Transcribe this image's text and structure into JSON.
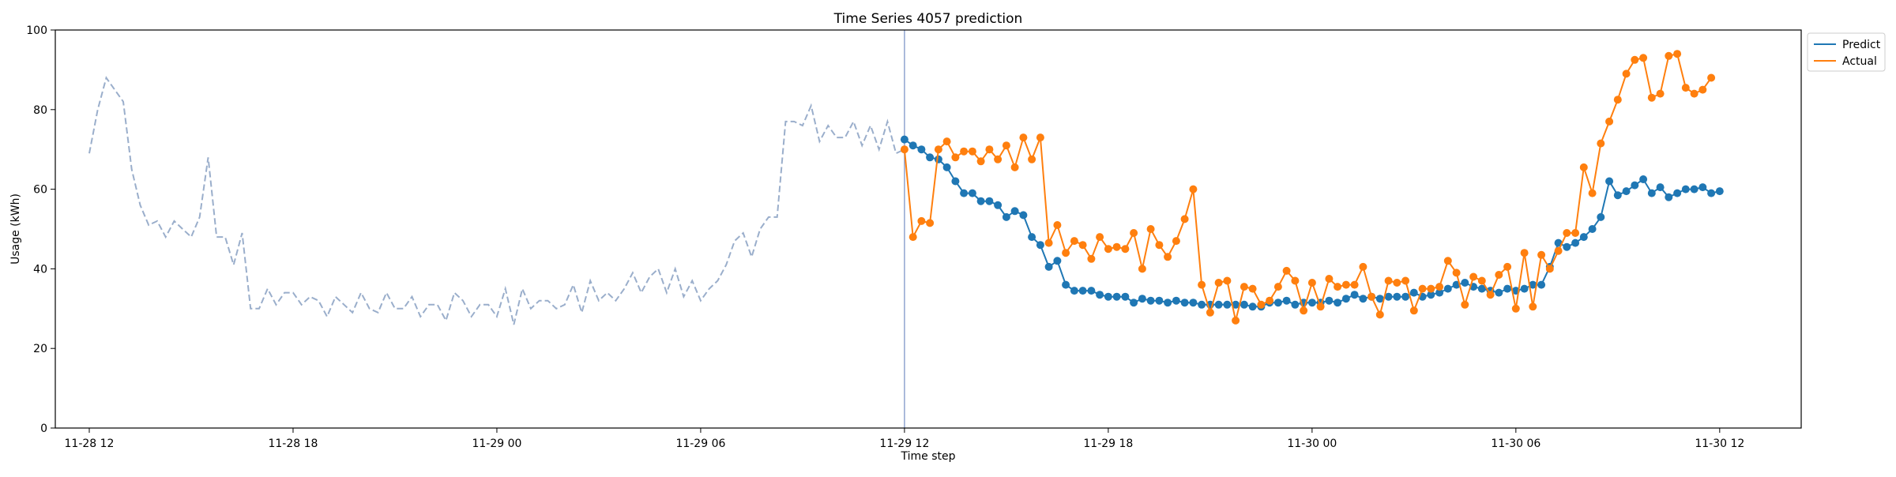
{
  "chart_data": {
    "type": "line",
    "title": "Time Series 4057 prediction",
    "xlabel": "Time step",
    "ylabel": "Usage (kWh)",
    "ylim": [
      0,
      100
    ],
    "y_ticks": [
      0,
      20,
      40,
      60,
      80,
      100
    ],
    "x_tick_labels": [
      "11-28 12",
      "11-28 18",
      "11-29 00",
      "11-29 06",
      "11-29 12",
      "11-29 18",
      "11-30 00",
      "11-30 06",
      "11-30 12"
    ],
    "x_start": "2023-11-28 11:00",
    "x_end": "2023-11-30 14:24",
    "x_tick_times": [
      "2023-11-28 12:00",
      "2023-11-28 18:00",
      "2023-11-29 00:00",
      "2023-11-29 06:00",
      "2023-11-29 12:00",
      "2023-11-29 18:00",
      "2023-11-30 00:00",
      "2023-11-30 06:00",
      "2023-11-30 12:00"
    ],
    "forecast_start": "2023-11-29 12:00",
    "legend_position": "top-right",
    "grid": false,
    "colors": {
      "history": "#9aaecb",
      "predict": "#1f77b4",
      "actual": "#ff7f0e",
      "divider": "#8fa3cf"
    },
    "history": {
      "start": "2023-11-28 12:00",
      "interval_minutes": 15,
      "values": [
        69,
        80,
        88,
        85,
        82,
        65,
        56,
        51,
        52,
        48,
        52,
        50,
        48,
        53,
        68,
        48,
        48,
        41,
        49,
        30,
        30,
        35,
        31,
        34,
        34,
        31,
        33,
        32,
        28,
        33,
        31,
        29,
        34,
        30,
        29,
        34,
        30,
        30,
        33,
        28,
        31,
        31,
        27,
        34,
        32,
        28,
        31,
        31,
        28,
        35,
        26,
        35,
        30,
        32,
        32,
        30,
        31,
        36,
        29,
        37,
        32,
        34,
        32,
        35,
        39,
        34,
        38,
        40,
        34,
        40,
        33,
        37,
        32,
        35,
        37,
        41,
        47,
        49,
        43,
        50,
        53,
        53,
        77,
        77,
        76,
        81,
        72,
        76,
        73,
        73,
        77,
        71,
        76,
        70,
        77,
        69,
        70
      ]
    },
    "series": [
      {
        "name": "Predict",
        "start": "2023-11-29 12:00",
        "interval_minutes": 15,
        "values": [
          72.5,
          71,
          70,
          68,
          67.5,
          65.5,
          62,
          59,
          59,
          57,
          57,
          56,
          53,
          54.5,
          53.5,
          48,
          46,
          40.5,
          42,
          36,
          34.5,
          34.5,
          34.5,
          33.5,
          33,
          33,
          33,
          31.5,
          32.5,
          32,
          32,
          31.5,
          32,
          31.5,
          31.5,
          31,
          31,
          31,
          31,
          31,
          31,
          30.5,
          30.5,
          31.5,
          31.5,
          32,
          31,
          31.5,
          31.5,
          31.5,
          32,
          31.5,
          32.5,
          33.5,
          32.5,
          33,
          32.5,
          33,
          33,
          33,
          34,
          33,
          33.5,
          34,
          35,
          36,
          36.5,
          35.5,
          35,
          34.5,
          34,
          35,
          34.5,
          35,
          36,
          36,
          40.5,
          46.5,
          45.5,
          46.5,
          48,
          50,
          53,
          62,
          58.5,
          59.5,
          61,
          62.5,
          59,
          60.5,
          58,
          59,
          60,
          60,
          60.5,
          59,
          59.5
        ]
      },
      {
        "name": "Actual",
        "start": "2023-11-29 12:00",
        "interval_minutes": 15,
        "values": [
          70,
          48,
          52,
          51.5,
          70,
          72,
          68,
          69.5,
          69.5,
          67,
          70,
          67.5,
          71,
          65.5,
          73,
          67.5,
          73,
          46.5,
          51,
          44,
          47,
          46,
          42.5,
          48,
          45,
          45.5,
          45,
          49,
          40,
          50,
          46,
          43,
          47,
          52.5,
          60,
          36,
          29,
          36.5,
          37,
          27,
          35.5,
          35,
          31,
          32,
          35.5,
          39.5,
          37,
          29.5,
          36.5,
          30.5,
          37.5,
          35.5,
          36,
          36,
          40.5,
          33,
          28.5,
          37,
          36.5,
          37,
          29.5,
          35,
          35,
          35.5,
          42,
          39,
          31,
          38,
          37,
          33.5,
          38.5,
          40.5,
          30,
          44,
          30.5,
          43.5,
          40,
          44.5,
          49,
          49,
          65.5,
          59,
          71.5,
          77,
          82.5,
          89,
          92.5,
          93,
          83,
          84,
          93.5,
          94,
          85.5,
          84,
          85,
          88
        ]
      }
    ]
  }
}
